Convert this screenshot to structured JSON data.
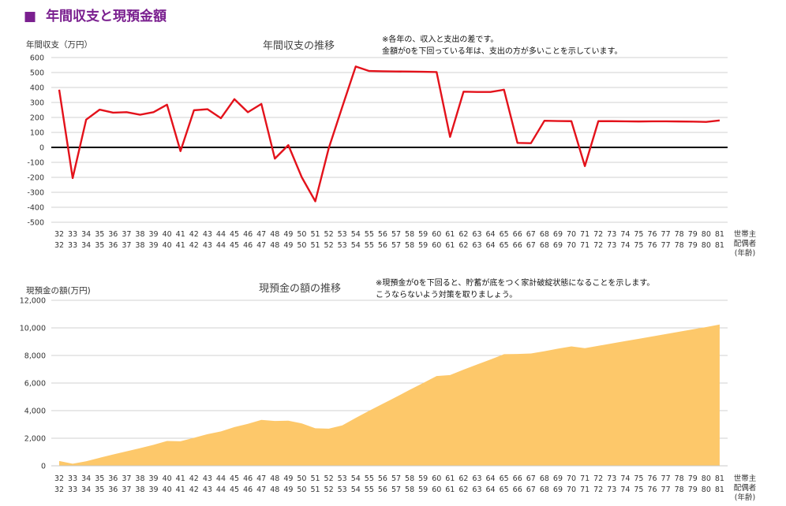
{
  "page_title": "年間収支と現預金額",
  "title_icon": "purple-square-icon",
  "chart_data": [
    {
      "type": "line",
      "title": "年間収支の推移",
      "ylabel": "年間収支（万円）",
      "xlabel": [
        "世帯主",
        "配偶者",
        "(年齢)"
      ],
      "note": [
        "※各年の、収入と支出の差です。",
        "金額が0を下回っている年は、支出の方が多いことを示しています。"
      ],
      "x_householder": [
        32,
        33,
        34,
        35,
        36,
        37,
        38,
        39,
        40,
        41,
        42,
        43,
        44,
        45,
        46,
        47,
        48,
        49,
        50,
        51,
        52,
        53,
        54,
        55,
        56,
        57,
        58,
        59,
        60,
        61,
        62,
        63,
        64,
        65,
        66,
        67,
        68,
        69,
        70,
        71,
        72,
        73,
        74,
        75,
        76,
        77,
        78,
        79,
        80,
        81
      ],
      "x_spouse": [
        32,
        33,
        34,
        35,
        36,
        37,
        38,
        39,
        40,
        41,
        42,
        43,
        44,
        45,
        46,
        47,
        48,
        49,
        50,
        51,
        52,
        53,
        54,
        55,
        56,
        57,
        58,
        59,
        60,
        61,
        62,
        63,
        64,
        65,
        66,
        67,
        68,
        69,
        70,
        71,
        72,
        73,
        74,
        75,
        76,
        77,
        78,
        79,
        80,
        81
      ],
      "yticks": [
        "600",
        "500",
        "400",
        "300",
        "200",
        "100",
        "0",
        "-100",
        "-200",
        "-300",
        "-400",
        "-500"
      ],
      "ylim": [
        -500,
        600
      ],
      "line_color": "#e3121b",
      "values": [
        385,
        -205,
        185,
        252,
        232,
        235,
        218,
        235,
        285,
        -25,
        248,
        255,
        195,
        322,
        235,
        290,
        -75,
        15,
        -200,
        -360,
        -5,
        270,
        540,
        510,
        508,
        507,
        506,
        505,
        503,
        70,
        372,
        370,
        370,
        385,
        30,
        28,
        178,
        176,
        175,
        -125,
        175,
        175,
        174,
        173,
        174,
        174,
        173,
        172,
        170,
        180
      ]
    },
    {
      "type": "area",
      "title": "現預金の額の推移",
      "ylabel": "現預金の額(万円)",
      "xlabel": [
        "世帯主",
        "配偶者",
        "(年齢)"
      ],
      "note": [
        "※現預金が0を下回ると、貯蓄が底をつく家計破綻状態になることを示します。",
        "こうならないよう対策を取りましょう。"
      ],
      "x_householder": [
        32,
        33,
        34,
        35,
        36,
        37,
        38,
        39,
        40,
        41,
        42,
        43,
        44,
        45,
        46,
        47,
        48,
        49,
        50,
        51,
        52,
        53,
        54,
        55,
        56,
        57,
        58,
        59,
        60,
        61,
        62,
        63,
        64,
        65,
        66,
        67,
        68,
        69,
        70,
        71,
        72,
        73,
        74,
        75,
        76,
        77,
        78,
        79,
        80,
        81
      ],
      "x_spouse": [
        32,
        33,
        34,
        35,
        36,
        37,
        38,
        39,
        40,
        41,
        42,
        43,
        44,
        45,
        46,
        47,
        48,
        49,
        50,
        51,
        52,
        53,
        54,
        55,
        56,
        57,
        58,
        59,
        60,
        61,
        62,
        63,
        64,
        65,
        66,
        67,
        68,
        69,
        70,
        71,
        72,
        73,
        74,
        75,
        76,
        77,
        78,
        79,
        80,
        81
      ],
      "yticks": [
        "12,000",
        "10,000",
        "8,000",
        "6,000",
        "4,000",
        "2,000",
        "0"
      ],
      "ylim": [
        0,
        12000
      ],
      "fill_color": "#fdc86a",
      "values": [
        350,
        150,
        330,
        580,
        820,
        1050,
        1280,
        1520,
        1800,
        1780,
        2030,
        2290,
        2490,
        2810,
        3040,
        3330,
        3250,
        3270,
        3070,
        2720,
        2690,
        2930,
        3470,
        3990,
        4490,
        4990,
        5510,
        6000,
        6510,
        6580,
        6970,
        7340,
        7710,
        8090,
        8110,
        8140,
        8310,
        8490,
        8660,
        8530,
        8700,
        8870,
        9040,
        9210,
        9380,
        9550,
        9720,
        9890,
        10060,
        10240
      ]
    }
  ]
}
